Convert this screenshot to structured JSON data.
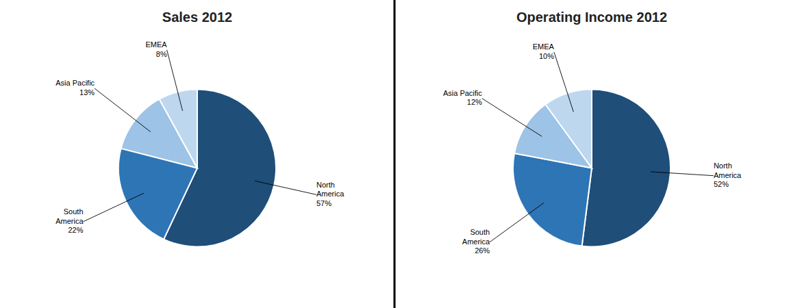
{
  "chart_data": [
    {
      "type": "pie",
      "title": "Sales 2012",
      "categories": [
        "North\nAmerica",
        "South\nAmerica",
        "Asia Pacific",
        "EMEA"
      ],
      "values": [
        57,
        22,
        13,
        8
      ],
      "value_labels": [
        "57%",
        "22%",
        "13%",
        "8%"
      ],
      "colors": [
        "#1F4E79",
        "#2E75B6",
        "#9DC3E6",
        "#BDD7EE"
      ],
      "data_labels": true
    },
    {
      "type": "pie",
      "title": "Operating Income 2012",
      "categories": [
        "North\nAmerica",
        "South\nAmerica",
        "Asia Pacific",
        "EMEA"
      ],
      "values": [
        52,
        26,
        12,
        10
      ],
      "value_labels": [
        "52%",
        "26%",
        "12%",
        "10%"
      ],
      "colors": [
        "#1F4E79",
        "#2E75B6",
        "#9DC3E6",
        "#BDD7EE"
      ],
      "data_labels": true
    }
  ]
}
